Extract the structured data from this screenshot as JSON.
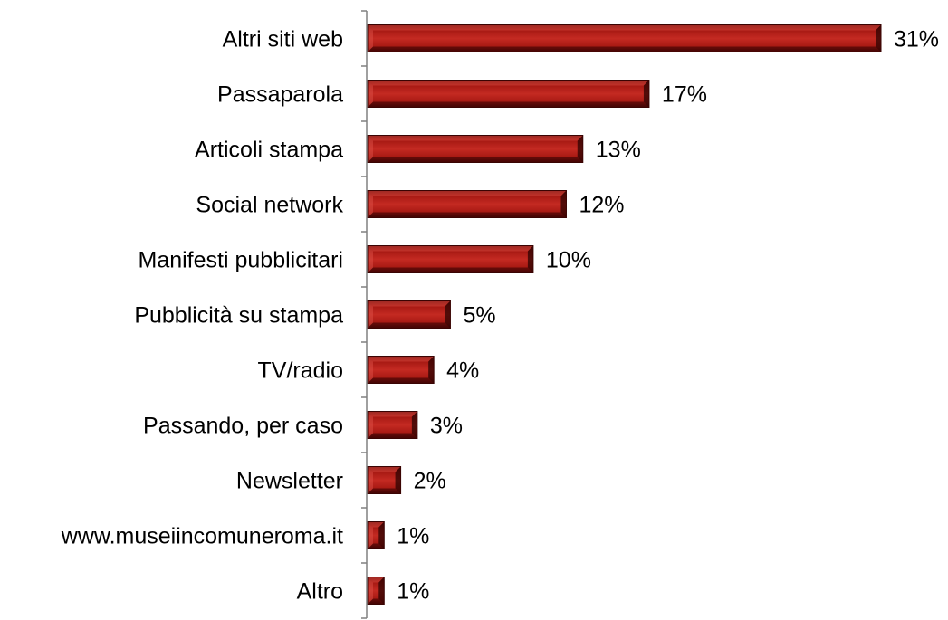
{
  "chart_data": {
    "type": "bar",
    "orientation": "horizontal",
    "title": "",
    "xlabel": "",
    "ylabel": "",
    "categories": [
      "Altri siti web",
      "Passaparola",
      "Articoli stampa",
      "Social network",
      "Manifesti pubblicitari",
      "Pubblicità su stampa",
      "TV/radio",
      "Passando, per caso",
      "Newsletter",
      "www.museiincomuneroma.it",
      "Altro"
    ],
    "values": [
      31,
      17,
      13,
      12,
      10,
      5,
      4,
      3,
      2,
      1,
      1
    ],
    "value_labels": [
      "31%",
      "17%",
      "13%",
      "12%",
      "10%",
      "5%",
      "4%",
      "3%",
      "2%",
      "1%",
      "1%"
    ],
    "bar_color": "#b01a14",
    "bar_color_dark": "#5a0806",
    "grid": false,
    "legend": "none"
  }
}
